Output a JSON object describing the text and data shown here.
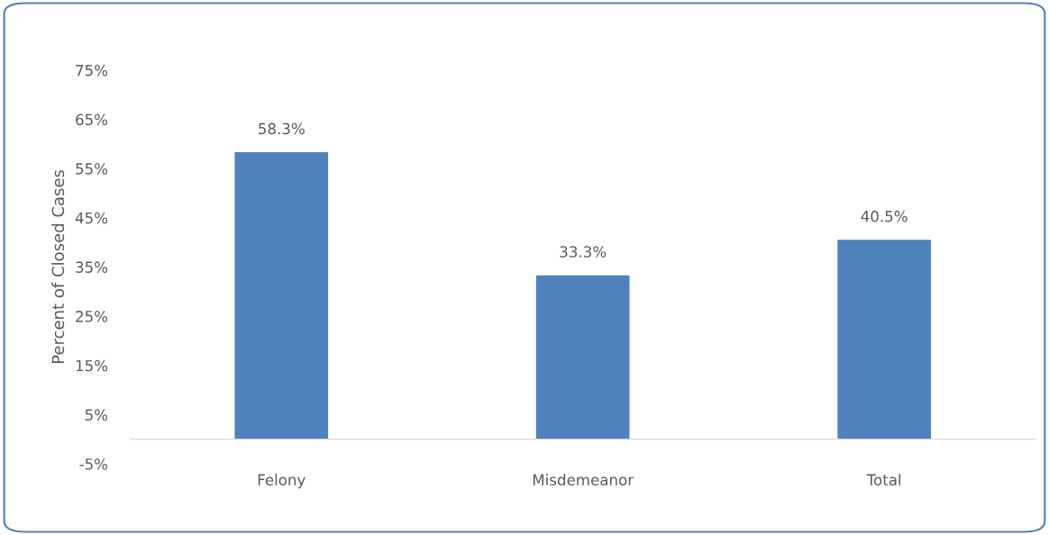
{
  "chart_data": {
    "type": "bar",
    "ylabel": "Percent of Closed Cases",
    "categories": [
      "Felony",
      "Misdemeanor",
      "Total"
    ],
    "values": [
      58.3,
      33.3,
      40.5
    ],
    "value_labels": [
      "58.3%",
      "33.3%",
      "40.5%"
    ],
    "color": "#4f81bd",
    "ylim": [
      -5,
      75
    ],
    "yticks": [
      {
        "value": -5,
        "label": "-5%"
      },
      {
        "value": 5,
        "label": "5%"
      },
      {
        "value": 15,
        "label": "15%"
      },
      {
        "value": 25,
        "label": "25%"
      },
      {
        "value": 35,
        "label": "35%"
      },
      {
        "value": 45,
        "label": "45%"
      },
      {
        "value": 55,
        "label": "55%"
      },
      {
        "value": 65,
        "label": "65%"
      },
      {
        "value": 75,
        "label": "75%"
      }
    ],
    "grid": false,
    "legend": false
  }
}
